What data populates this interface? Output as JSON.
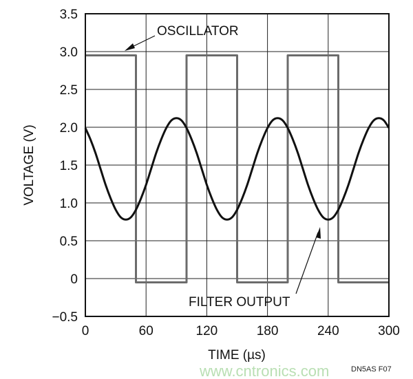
{
  "chart_data": {
    "type": "line",
    "title": "",
    "xlabel": "TIME (µs)",
    "ylabel": "VOLTAGE (V)",
    "xlim": [
      0,
      300
    ],
    "ylim": [
      -0.5,
      3.5
    ],
    "xticks": [
      0,
      60,
      120,
      180,
      240,
      300
    ],
    "yticks": [
      -0.5,
      0,
      0.5,
      1.0,
      1.5,
      2.0,
      2.5,
      3.0,
      3.5
    ],
    "xtick_labels": [
      "0",
      "60",
      "120",
      "180",
      "240",
      "300"
    ],
    "ytick_labels": [
      "−0.5",
      "0",
      "0.5",
      "1.0",
      "1.5",
      "2.0",
      "2.5",
      "3.0",
      "3.5"
    ],
    "grid": true,
    "series": [
      {
        "name": "OSCILLATOR",
        "color": "#6b6b6b",
        "points": [
          [
            0,
            2.95
          ],
          [
            50,
            2.95
          ],
          [
            50,
            -0.05
          ],
          [
            100,
            -0.05
          ],
          [
            100,
            2.95
          ],
          [
            150,
            2.95
          ],
          [
            150,
            -0.05
          ],
          [
            200,
            -0.05
          ],
          [
            200,
            2.95
          ],
          [
            250,
            2.95
          ],
          [
            250,
            -0.05
          ],
          [
            300,
            -0.05
          ]
        ]
      },
      {
        "name": "FILTER OUTPUT",
        "color": "#111111",
        "x_step": 5,
        "values": [
          1.99,
          1.84,
          1.66,
          1.45,
          1.24,
          1.06,
          0.91,
          0.81,
          0.78,
          0.81,
          0.91,
          1.06,
          1.24,
          1.45,
          1.66,
          1.84,
          1.99,
          2.09,
          2.12,
          2.09,
          1.99,
          1.84,
          1.66,
          1.45,
          1.24,
          1.06,
          0.91,
          0.81,
          0.78,
          0.81,
          0.91,
          1.06,
          1.24,
          1.45,
          1.66,
          1.84,
          1.99,
          2.09,
          2.12,
          2.09,
          1.99,
          1.84,
          1.66,
          1.45,
          1.24,
          1.06,
          0.91,
          0.81,
          0.78,
          0.81,
          0.91,
          1.06,
          1.24,
          1.45,
          1.66,
          1.84,
          1.99,
          2.09,
          2.12,
          2.09,
          1.99
        ]
      }
    ],
    "annotations": [
      {
        "text": "OSCILLATOR",
        "points_to": [
          35,
          2.95
        ]
      },
      {
        "text": "FILTER OUTPUT",
        "points_to": [
          232,
          0.82
        ]
      }
    ]
  },
  "figure_code": "DN5AS F07",
  "watermark": "www.cntronics.com"
}
